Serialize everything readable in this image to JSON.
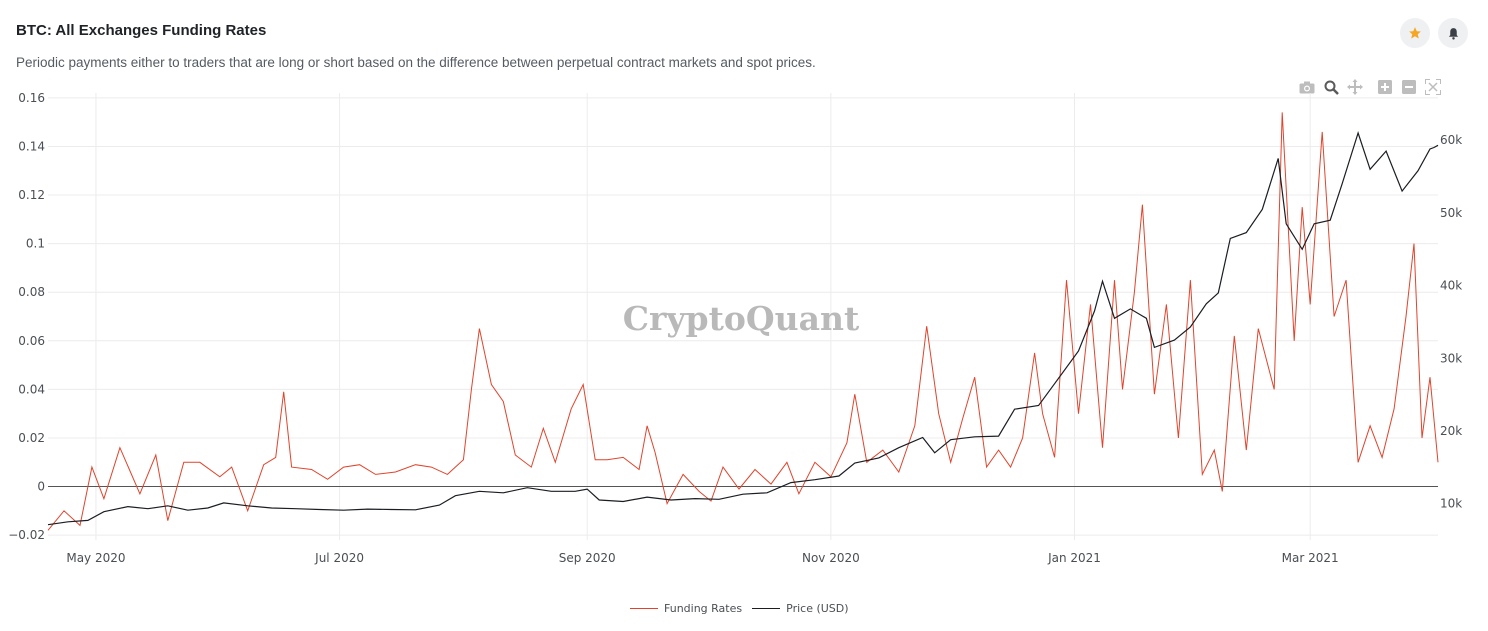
{
  "header": {
    "title": "BTC: All Exchanges Funding Rates",
    "subtitle": "Periodic payments either to traders that are long or short based on the difference between perpetual contract markets and spot prices."
  },
  "actions": {
    "favorite_icon": "star-icon",
    "alert_icon": "bell-icon"
  },
  "modebar": [
    "camera-icon",
    "zoom-icon",
    "pan-icon",
    "zoom-in-icon",
    "zoom-out-icon",
    "autoscale-icon"
  ],
  "watermark": "CryptoQuant",
  "colors": {
    "funding": "#e0442c",
    "price": "#1a1e23",
    "zero_line": "#555555",
    "grid": "#ececec",
    "star": "#f5a623"
  },
  "chart_data": {
    "type": "line",
    "xlabel": "",
    "ylabel": "",
    "x_range": [
      "2020-04-19",
      "2021-04-02"
    ],
    "y_left_range": [
      -0.022,
      0.162
    ],
    "y_right_range": [
      5000,
      66500
    ],
    "x_ticks": [
      "May 2020",
      "Jul 2020",
      "Sep 2020",
      "Nov 2020",
      "Jan 2021",
      "Mar 2021"
    ],
    "y_left_ticks": [
      "0.16",
      "0.14",
      "0.12",
      "0.1",
      "0.08",
      "0.06",
      "0.04",
      "0.02",
      "0",
      "−0.02"
    ],
    "y_right_ticks": [
      "60k",
      "50k",
      "40k",
      "30k",
      "20k",
      "10k"
    ],
    "legend_position": "bottom-center",
    "series": [
      {
        "name": "Funding Rates",
        "axis": "left",
        "points": [
          [
            "2020-04-19",
            -0.018
          ],
          [
            "2020-04-23",
            -0.01
          ],
          [
            "2020-04-27",
            -0.016
          ],
          [
            "2020-04-30",
            0.008
          ],
          [
            "2020-05-03",
            -0.005
          ],
          [
            "2020-05-07",
            0.016
          ],
          [
            "2020-05-12",
            -0.003
          ],
          [
            "2020-05-16",
            0.013
          ],
          [
            "2020-05-19",
            -0.014
          ],
          [
            "2020-05-23",
            0.01
          ],
          [
            "2020-05-27",
            0.01
          ],
          [
            "2020-06-01",
            0.004
          ],
          [
            "2020-06-04",
            0.008
          ],
          [
            "2020-06-08",
            -0.01
          ],
          [
            "2020-06-12",
            0.009
          ],
          [
            "2020-06-15",
            0.012
          ],
          [
            "2020-06-17",
            0.039
          ],
          [
            "2020-06-19",
            0.008
          ],
          [
            "2020-06-24",
            0.007
          ],
          [
            "2020-06-28",
            0.003
          ],
          [
            "2020-07-02",
            0.008
          ],
          [
            "2020-07-06",
            0.009
          ],
          [
            "2020-07-10",
            0.005
          ],
          [
            "2020-07-15",
            0.006
          ],
          [
            "2020-07-20",
            0.009
          ],
          [
            "2020-07-24",
            0.008
          ],
          [
            "2020-07-28",
            0.005
          ],
          [
            "2020-08-01",
            0.011
          ],
          [
            "2020-08-03",
            0.04
          ],
          [
            "2020-08-05",
            0.065
          ],
          [
            "2020-08-08",
            0.042
          ],
          [
            "2020-08-11",
            0.035
          ],
          [
            "2020-08-14",
            0.013
          ],
          [
            "2020-08-18",
            0.008
          ],
          [
            "2020-08-21",
            0.024
          ],
          [
            "2020-08-24",
            0.01
          ],
          [
            "2020-08-28",
            0.032
          ],
          [
            "2020-08-31",
            0.042
          ],
          [
            "2020-09-03",
            0.011
          ],
          [
            "2020-09-06",
            0.011
          ],
          [
            "2020-09-10",
            0.012
          ],
          [
            "2020-09-14",
            0.007
          ],
          [
            "2020-09-16",
            0.025
          ],
          [
            "2020-09-18",
            0.014
          ],
          [
            "2020-09-21",
            -0.007
          ],
          [
            "2020-09-25",
            0.005
          ],
          [
            "2020-09-29",
            -0.002
          ],
          [
            "2020-10-02",
            -0.006
          ],
          [
            "2020-10-05",
            0.008
          ],
          [
            "2020-10-09",
            -0.001
          ],
          [
            "2020-10-13",
            0.007
          ],
          [
            "2020-10-17",
            0.001
          ],
          [
            "2020-10-21",
            0.01
          ],
          [
            "2020-10-24",
            -0.003
          ],
          [
            "2020-10-28",
            0.01
          ],
          [
            "2020-11-01",
            0.004
          ],
          [
            "2020-11-05",
            0.018
          ],
          [
            "2020-11-07",
            0.038
          ],
          [
            "2020-11-10",
            0.01
          ],
          [
            "2020-11-14",
            0.015
          ],
          [
            "2020-11-18",
            0.006
          ],
          [
            "2020-11-22",
            0.025
          ],
          [
            "2020-11-25",
            0.066
          ],
          [
            "2020-11-28",
            0.03
          ],
          [
            "2020-12-01",
            0.01
          ],
          [
            "2020-12-04",
            0.028
          ],
          [
            "2020-12-07",
            0.045
          ],
          [
            "2020-12-10",
            0.008
          ],
          [
            "2020-12-13",
            0.015
          ],
          [
            "2020-12-16",
            0.008
          ],
          [
            "2020-12-19",
            0.02
          ],
          [
            "2020-12-22",
            0.055
          ],
          [
            "2020-12-24",
            0.03
          ],
          [
            "2020-12-27",
            0.012
          ],
          [
            "2020-12-30",
            0.085
          ],
          [
            "2021-01-02",
            0.03
          ],
          [
            "2021-01-05",
            0.075
          ],
          [
            "2021-01-08",
            0.016
          ],
          [
            "2021-01-11",
            0.085
          ],
          [
            "2021-01-13",
            0.04
          ],
          [
            "2021-01-16",
            0.08
          ],
          [
            "2021-01-18",
            0.116
          ],
          [
            "2021-01-21",
            0.038
          ],
          [
            "2021-01-24",
            0.075
          ],
          [
            "2021-01-27",
            0.02
          ],
          [
            "2021-01-30",
            0.085
          ],
          [
            "2021-02-02",
            0.005
          ],
          [
            "2021-02-05",
            0.015
          ],
          [
            "2021-02-07",
            -0.002
          ],
          [
            "2021-02-10",
            0.062
          ],
          [
            "2021-02-13",
            0.015
          ],
          [
            "2021-02-16",
            0.065
          ],
          [
            "2021-02-20",
            0.04
          ],
          [
            "2021-02-22",
            0.154
          ],
          [
            "2021-02-25",
            0.06
          ],
          [
            "2021-02-27",
            0.115
          ],
          [
            "2021-03-01",
            0.075
          ],
          [
            "2021-03-04",
            0.146
          ],
          [
            "2021-03-07",
            0.07
          ],
          [
            "2021-03-10",
            0.085
          ],
          [
            "2021-03-13",
            0.01
          ],
          [
            "2021-03-16",
            0.025
          ],
          [
            "2021-03-19",
            0.012
          ],
          [
            "2021-03-22",
            0.032
          ],
          [
            "2021-03-25",
            0.07
          ],
          [
            "2021-03-27",
            0.1
          ],
          [
            "2021-03-29",
            0.02
          ],
          [
            "2021-03-31",
            0.045
          ],
          [
            "2021-04-02",
            0.01
          ]
        ]
      },
      {
        "name": "Price (USD)",
        "axis": "right",
        "points": [
          [
            "2020-04-19",
            7100
          ],
          [
            "2020-04-24",
            7500
          ],
          [
            "2020-04-29",
            7700
          ],
          [
            "2020-05-03",
            8900
          ],
          [
            "2020-05-09",
            9600
          ],
          [
            "2020-05-14",
            9300
          ],
          [
            "2020-05-19",
            9700
          ],
          [
            "2020-05-24",
            9100
          ],
          [
            "2020-05-29",
            9400
          ],
          [
            "2020-06-02",
            10100
          ],
          [
            "2020-06-08",
            9700
          ],
          [
            "2020-06-14",
            9400
          ],
          [
            "2020-06-20",
            9300
          ],
          [
            "2020-06-26",
            9200
          ],
          [
            "2020-07-02",
            9100
          ],
          [
            "2020-07-08",
            9250
          ],
          [
            "2020-07-14",
            9200
          ],
          [
            "2020-07-20",
            9150
          ],
          [
            "2020-07-26",
            9800
          ],
          [
            "2020-07-30",
            11100
          ],
          [
            "2020-08-05",
            11700
          ],
          [
            "2020-08-11",
            11500
          ],
          [
            "2020-08-17",
            12200
          ],
          [
            "2020-08-23",
            11700
          ],
          [
            "2020-08-29",
            11700
          ],
          [
            "2020-09-01",
            12000
          ],
          [
            "2020-09-04",
            10500
          ],
          [
            "2020-09-10",
            10300
          ],
          [
            "2020-09-16",
            10900
          ],
          [
            "2020-09-22",
            10500
          ],
          [
            "2020-09-28",
            10700
          ],
          [
            "2020-10-04",
            10600
          ],
          [
            "2020-10-10",
            11300
          ],
          [
            "2020-10-16",
            11500
          ],
          [
            "2020-10-22",
            12900
          ],
          [
            "2020-10-28",
            13300
          ],
          [
            "2020-11-03",
            13800
          ],
          [
            "2020-11-07",
            15600
          ],
          [
            "2020-11-13",
            16300
          ],
          [
            "2020-11-18",
            17700
          ],
          [
            "2020-11-24",
            19100
          ],
          [
            "2020-11-27",
            17000
          ],
          [
            "2020-12-01",
            18800
          ],
          [
            "2020-12-07",
            19200
          ],
          [
            "2020-12-13",
            19300
          ],
          [
            "2020-12-17",
            23000
          ],
          [
            "2020-12-23",
            23500
          ],
          [
            "2020-12-27",
            26500
          ],
          [
            "2021-01-02",
            31000
          ],
          [
            "2021-01-06",
            36500
          ],
          [
            "2021-01-08",
            40600
          ],
          [
            "2021-01-11",
            35500
          ],
          [
            "2021-01-15",
            36800
          ],
          [
            "2021-01-19",
            35500
          ],
          [
            "2021-01-21",
            31500
          ],
          [
            "2021-01-26",
            32500
          ],
          [
            "2021-01-30",
            34300
          ],
          [
            "2021-02-03",
            37500
          ],
          [
            "2021-02-06",
            39000
          ],
          [
            "2021-02-09",
            46500
          ],
          [
            "2021-02-13",
            47300
          ],
          [
            "2021-02-17",
            50500
          ],
          [
            "2021-02-21",
            57500
          ],
          [
            "2021-02-23",
            48500
          ],
          [
            "2021-02-27",
            45000
          ],
          [
            "2021-03-02",
            48500
          ],
          [
            "2021-03-06",
            49000
          ],
          [
            "2021-03-09",
            54000
          ],
          [
            "2021-03-13",
            61000
          ],
          [
            "2021-03-16",
            56000
          ],
          [
            "2021-03-20",
            58500
          ],
          [
            "2021-03-24",
            53000
          ],
          [
            "2021-03-28",
            55800
          ],
          [
            "2021-03-31",
            58800
          ],
          [
            "2021-04-01",
            59000
          ],
          [
            "2021-04-02",
            59300
          ]
        ]
      }
    ]
  },
  "legend": {
    "funding_label": "Funding Rates",
    "price_label": "Price (USD)"
  }
}
